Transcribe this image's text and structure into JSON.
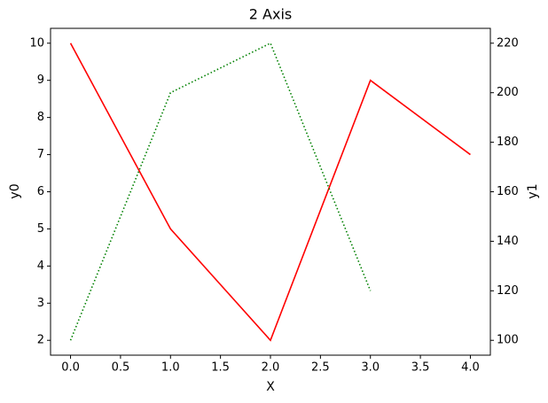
{
  "chart_data": {
    "type": "line",
    "title": "2 Axis",
    "x_label": "X",
    "y_label": "y0",
    "y2_label": "y1",
    "x": [
      0,
      1,
      2,
      3,
      4
    ],
    "series": [
      {
        "name": "y0",
        "color": "#ff0000",
        "linestyle": "solid",
        "values": [
          10,
          5,
          2,
          9,
          7
        ]
      },
      {
        "name": "y1",
        "color": "#008000",
        "linestyle": "dotted",
        "axis": "y2",
        "values": [
          100,
          200,
          220,
          120,
          null
        ]
      }
    ],
    "xlim": [
      -0.2,
      4.2
    ],
    "xticks": [
      {
        "value": 0,
        "label": "0.0"
      },
      0.5,
      {
        "value": 1,
        "label": "1.0"
      },
      1.5,
      {
        "value": 2,
        "label": "2.0"
      },
      2.5,
      {
        "value": 3,
        "label": "3.0"
      },
      3.5,
      {
        "value": 4,
        "label": "4.0"
      }
    ],
    "ylim": [
      1.6,
      10.4
    ],
    "yticks": [
      2,
      3,
      4,
      5,
      6,
      7,
      8,
      9,
      10
    ],
    "y2lim": [
      94,
      226
    ],
    "y2ticks": [
      100,
      120,
      140,
      160,
      180,
      200,
      220
    ]
  }
}
